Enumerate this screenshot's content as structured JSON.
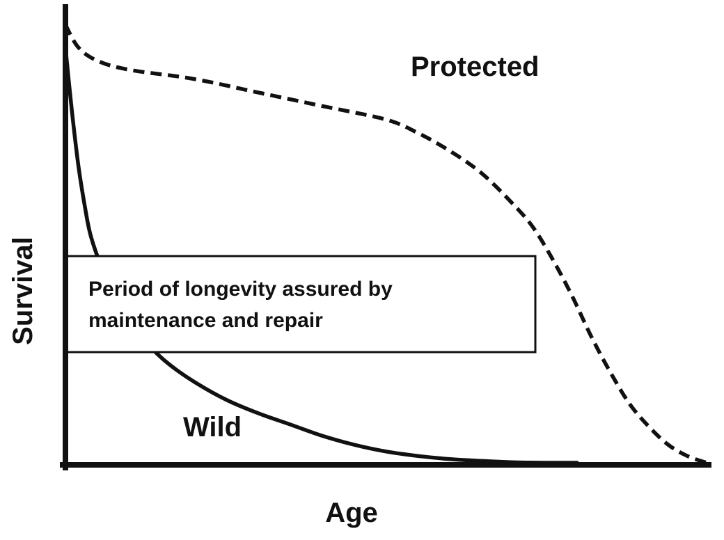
{
  "chart_data": {
    "type": "line",
    "title": "",
    "xlabel": "Age",
    "ylabel": "Survival",
    "xlim": [
      0,
      100
    ],
    "ylim": [
      0,
      100
    ],
    "grid": false,
    "legend": "none",
    "series": [
      {
        "name": "Protected",
        "style": "dashed",
        "color": "#111111",
        "x": [
          0,
          2,
          5,
          10,
          20,
          30,
          40,
          50,
          55,
          60,
          65,
          70,
          73,
          76,
          79,
          82,
          85,
          88,
          91,
          94,
          97,
          100
        ],
        "y": [
          97,
          92,
          89,
          87,
          85,
          82,
          79,
          76,
          73,
          69,
          64,
          57,
          52,
          45,
          37,
          28,
          20,
          13,
          8,
          4,
          1.5,
          0
        ]
      },
      {
        "name": "Wild",
        "style": "solid",
        "color": "#111111",
        "x": [
          0,
          1,
          2,
          3,
          4,
          6,
          8,
          10,
          13,
          16,
          20,
          25,
          30,
          35,
          40,
          45,
          50,
          55,
          60,
          65,
          70,
          75,
          80
        ],
        "y": [
          92,
          78,
          66,
          57,
          50,
          42,
          36,
          31,
          26,
          22,
          18,
          14,
          11,
          8.5,
          6,
          4,
          2.5,
          1.5,
          0.8,
          0.4,
          0.1,
          0,
          0
        ]
      }
    ],
    "annotations": [
      {
        "id": "box",
        "lines": [
          "Period of longevity assured by",
          "maintenance and repair"
        ]
      }
    ]
  }
}
